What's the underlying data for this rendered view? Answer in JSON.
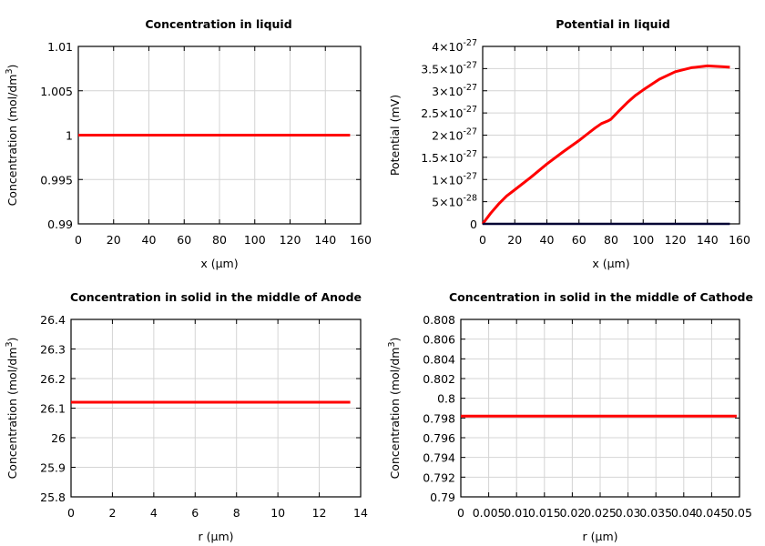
{
  "chart_data": [
    {
      "type": "line",
      "title": "Concentration in liquid",
      "xlabel": "x (µm)",
      "ylabel": {
        "text": "Concentration (mol/dm",
        "sup": "3",
        "tail": ")"
      },
      "xlim": [
        0,
        160
      ],
      "ylim": [
        0.99,
        1.01
      ],
      "xticks": [
        0,
        20,
        40,
        60,
        80,
        100,
        120,
        140,
        160
      ],
      "xtick_labels": [
        "0",
        "20",
        "40",
        "60",
        "80",
        "100",
        "120",
        "140",
        "160"
      ],
      "yticks": [
        0.99,
        0.995,
        1,
        1.005,
        1.01
      ],
      "ytick_labels": [
        {
          "b": "0.99"
        },
        {
          "b": "0.995"
        },
        {
          "b": "1"
        },
        {
          "b": "1.005"
        },
        {
          "b": "1.01"
        }
      ],
      "grid": true,
      "series": [
        {
          "color": "#ff0000",
          "x": [
            0,
            154
          ],
          "y": [
            1,
            1
          ]
        }
      ]
    },
    {
      "type": "line",
      "title": "Potential in liquid",
      "xlabel": "x (µm)",
      "ylabel": {
        "text": "Potential (mV)",
        "sup": "",
        "tail": ""
      },
      "xlim": [
        0,
        160
      ],
      "ylim": [
        0,
        4e-27
      ],
      "xticks": [
        0,
        20,
        40,
        60,
        80,
        100,
        120,
        140,
        160
      ],
      "xtick_labels": [
        "0",
        "20",
        "40",
        "60",
        "80",
        "100",
        "120",
        "140",
        "160"
      ],
      "yticks": [
        0,
        5e-28,
        1e-27,
        1.5e-27,
        2e-27,
        2.5e-27,
        3e-27,
        3.5e-27,
        4e-27
      ],
      "ytick_labels": [
        {
          "b": "0"
        },
        {
          "b": "5×10",
          "e": "-28"
        },
        {
          "b": "1×10",
          "e": "-27"
        },
        {
          "b": "1.5×10",
          "e": "-27"
        },
        {
          "b": "2×10",
          "e": "-27"
        },
        {
          "b": "2.5×10",
          "e": "-27"
        },
        {
          "b": "3×10",
          "e": "-27"
        },
        {
          "b": "3.5×10",
          "e": "-27"
        },
        {
          "b": "4×10",
          "e": "-27"
        }
      ],
      "grid": true,
      "series": [
        {
          "color": "#ff0000",
          "x": [
            0,
            5,
            10,
            15,
            20,
            30,
            40,
            50,
            60,
            65,
            70,
            74,
            78,
            80,
            85,
            90,
            95,
            100,
            110,
            120,
            130,
            140,
            150,
            154
          ],
          "y": [
            0,
            2.4e-28,
            4.5e-28,
            6.3e-28,
            7.7e-28,
            1.05e-27,
            1.35e-27,
            1.62e-27,
            1.88e-27,
            2.02e-27,
            2.16e-27,
            2.26e-27,
            2.32e-27,
            2.36e-27,
            2.55e-27,
            2.73e-27,
            2.89e-27,
            3.02e-27,
            3.26e-27,
            3.43e-27,
            3.52e-27,
            3.56e-27,
            3.54e-27,
            3.53e-27
          ]
        },
        {
          "color": "#000033",
          "x": [
            0,
            154
          ],
          "y": [
            0,
            0
          ]
        }
      ]
    },
    {
      "type": "line",
      "title": "Concentration in solid in the middle of Anode",
      "xlabel": "r (µm)",
      "ylabel": {
        "text": "Concentration (mol/dm",
        "sup": "3",
        "tail": ")"
      },
      "xlim": [
        0,
        14
      ],
      "ylim": [
        25.8,
        26.4
      ],
      "xticks": [
        0,
        2,
        4,
        6,
        8,
        10,
        12,
        14
      ],
      "xtick_labels": [
        "0",
        "2",
        "4",
        "6",
        "8",
        "10",
        "12",
        "14"
      ],
      "yticks": [
        25.8,
        25.9,
        26,
        26.1,
        26.2,
        26.3,
        26.4
      ],
      "ytick_labels": [
        {
          "b": "25.8"
        },
        {
          "b": "25.9"
        },
        {
          "b": "26"
        },
        {
          "b": "26.1"
        },
        {
          "b": "26.2"
        },
        {
          "b": "26.3"
        },
        {
          "b": "26.4"
        }
      ],
      "grid": true,
      "series": [
        {
          "color": "#ff0000",
          "x": [
            0,
            13.5
          ],
          "y": [
            26.12,
            26.12
          ]
        }
      ]
    },
    {
      "type": "line",
      "title": "Concentration in solid in the middle of Cathode",
      "xlabel": "r (µm)",
      "ylabel": {
        "text": "Concentration (mol/dm",
        "sup": "3",
        "tail": ")"
      },
      "xlim": [
        0,
        0.05
      ],
      "ylim": [
        0.79,
        0.808
      ],
      "xticks": [
        0,
        0.005,
        0.01,
        0.015,
        0.02,
        0.025,
        0.03,
        0.035,
        0.04,
        0.045,
        0.05
      ],
      "xtick_labels": [
        "0",
        "0.005",
        "0.01",
        "0.015",
        "0.02",
        "0.025",
        "0.03",
        "0.035",
        "0.04",
        "0.045",
        "0.05"
      ],
      "yticks": [
        0.79,
        0.792,
        0.794,
        0.796,
        0.798,
        0.8,
        0.802,
        0.804,
        0.806,
        0.808
      ],
      "ytick_labels": [
        {
          "b": "0.79"
        },
        {
          "b": "0.792"
        },
        {
          "b": "0.794"
        },
        {
          "b": "0.796"
        },
        {
          "b": "0.798"
        },
        {
          "b": "0.8"
        },
        {
          "b": "0.802"
        },
        {
          "b": "0.804"
        },
        {
          "b": "0.806"
        },
        {
          "b": "0.808"
        }
      ],
      "grid": true,
      "series": [
        {
          "color": "#ff0000",
          "x": [
            0,
            0.0495
          ],
          "y": [
            0.7982,
            0.7982
          ]
        }
      ]
    }
  ]
}
